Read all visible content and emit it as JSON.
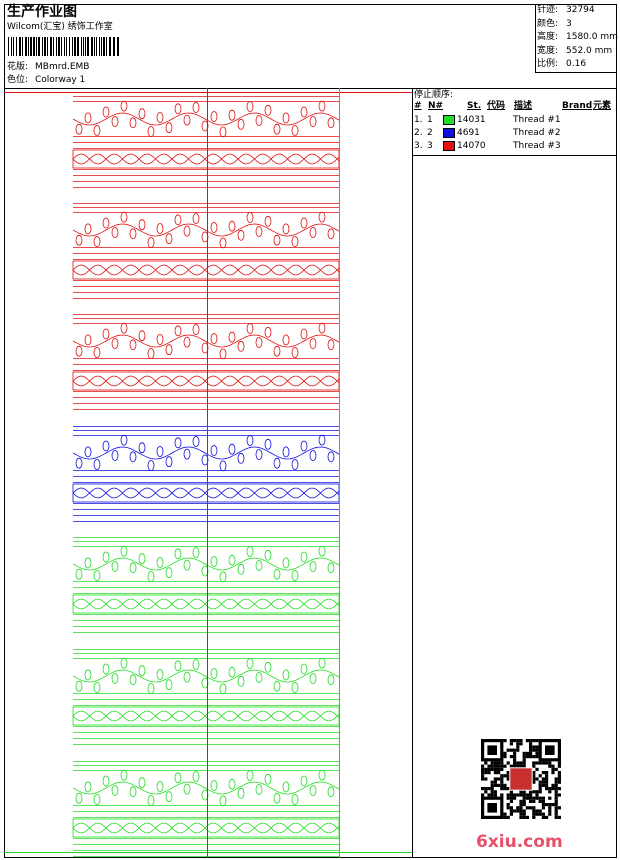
{
  "header": {
    "title": "生产作业图",
    "subtitle": "Wilcom(汇宝) 绣饰工作室",
    "fields": [
      {
        "label": "花版:",
        "value": "MBmrd.EMB"
      },
      {
        "label": "色位:",
        "value": "Colorway 1"
      }
    ]
  },
  "info": [
    {
      "label": "针迹:",
      "value": "32794"
    },
    {
      "label": "颜色:",
      "value": "3"
    },
    {
      "label": "高度:",
      "value": "1580.0 mm"
    },
    {
      "label": "宽度:",
      "value": "552.0 mm"
    },
    {
      "label": "比例:",
      "value": "0.16"
    }
  ],
  "stop_sequence": {
    "title": "停止顺序:",
    "columns": [
      "#",
      "N#",
      "St.",
      "代码",
      "描述",
      "Brand",
      "元素"
    ],
    "rows": [
      {
        "index": "1.",
        "needle": "1",
        "color": "#22dd22",
        "code": "14031",
        "description": "Thread #1"
      },
      {
        "index": "2.",
        "needle": "2",
        "color": "#1010e0",
        "code": "4691",
        "description": "Thread #2"
      },
      {
        "index": "3.",
        "needle": "3",
        "color": "#e01010",
        "code": "14070",
        "description": "Thread #3"
      }
    ]
  },
  "watermark": "6xiu.com"
}
